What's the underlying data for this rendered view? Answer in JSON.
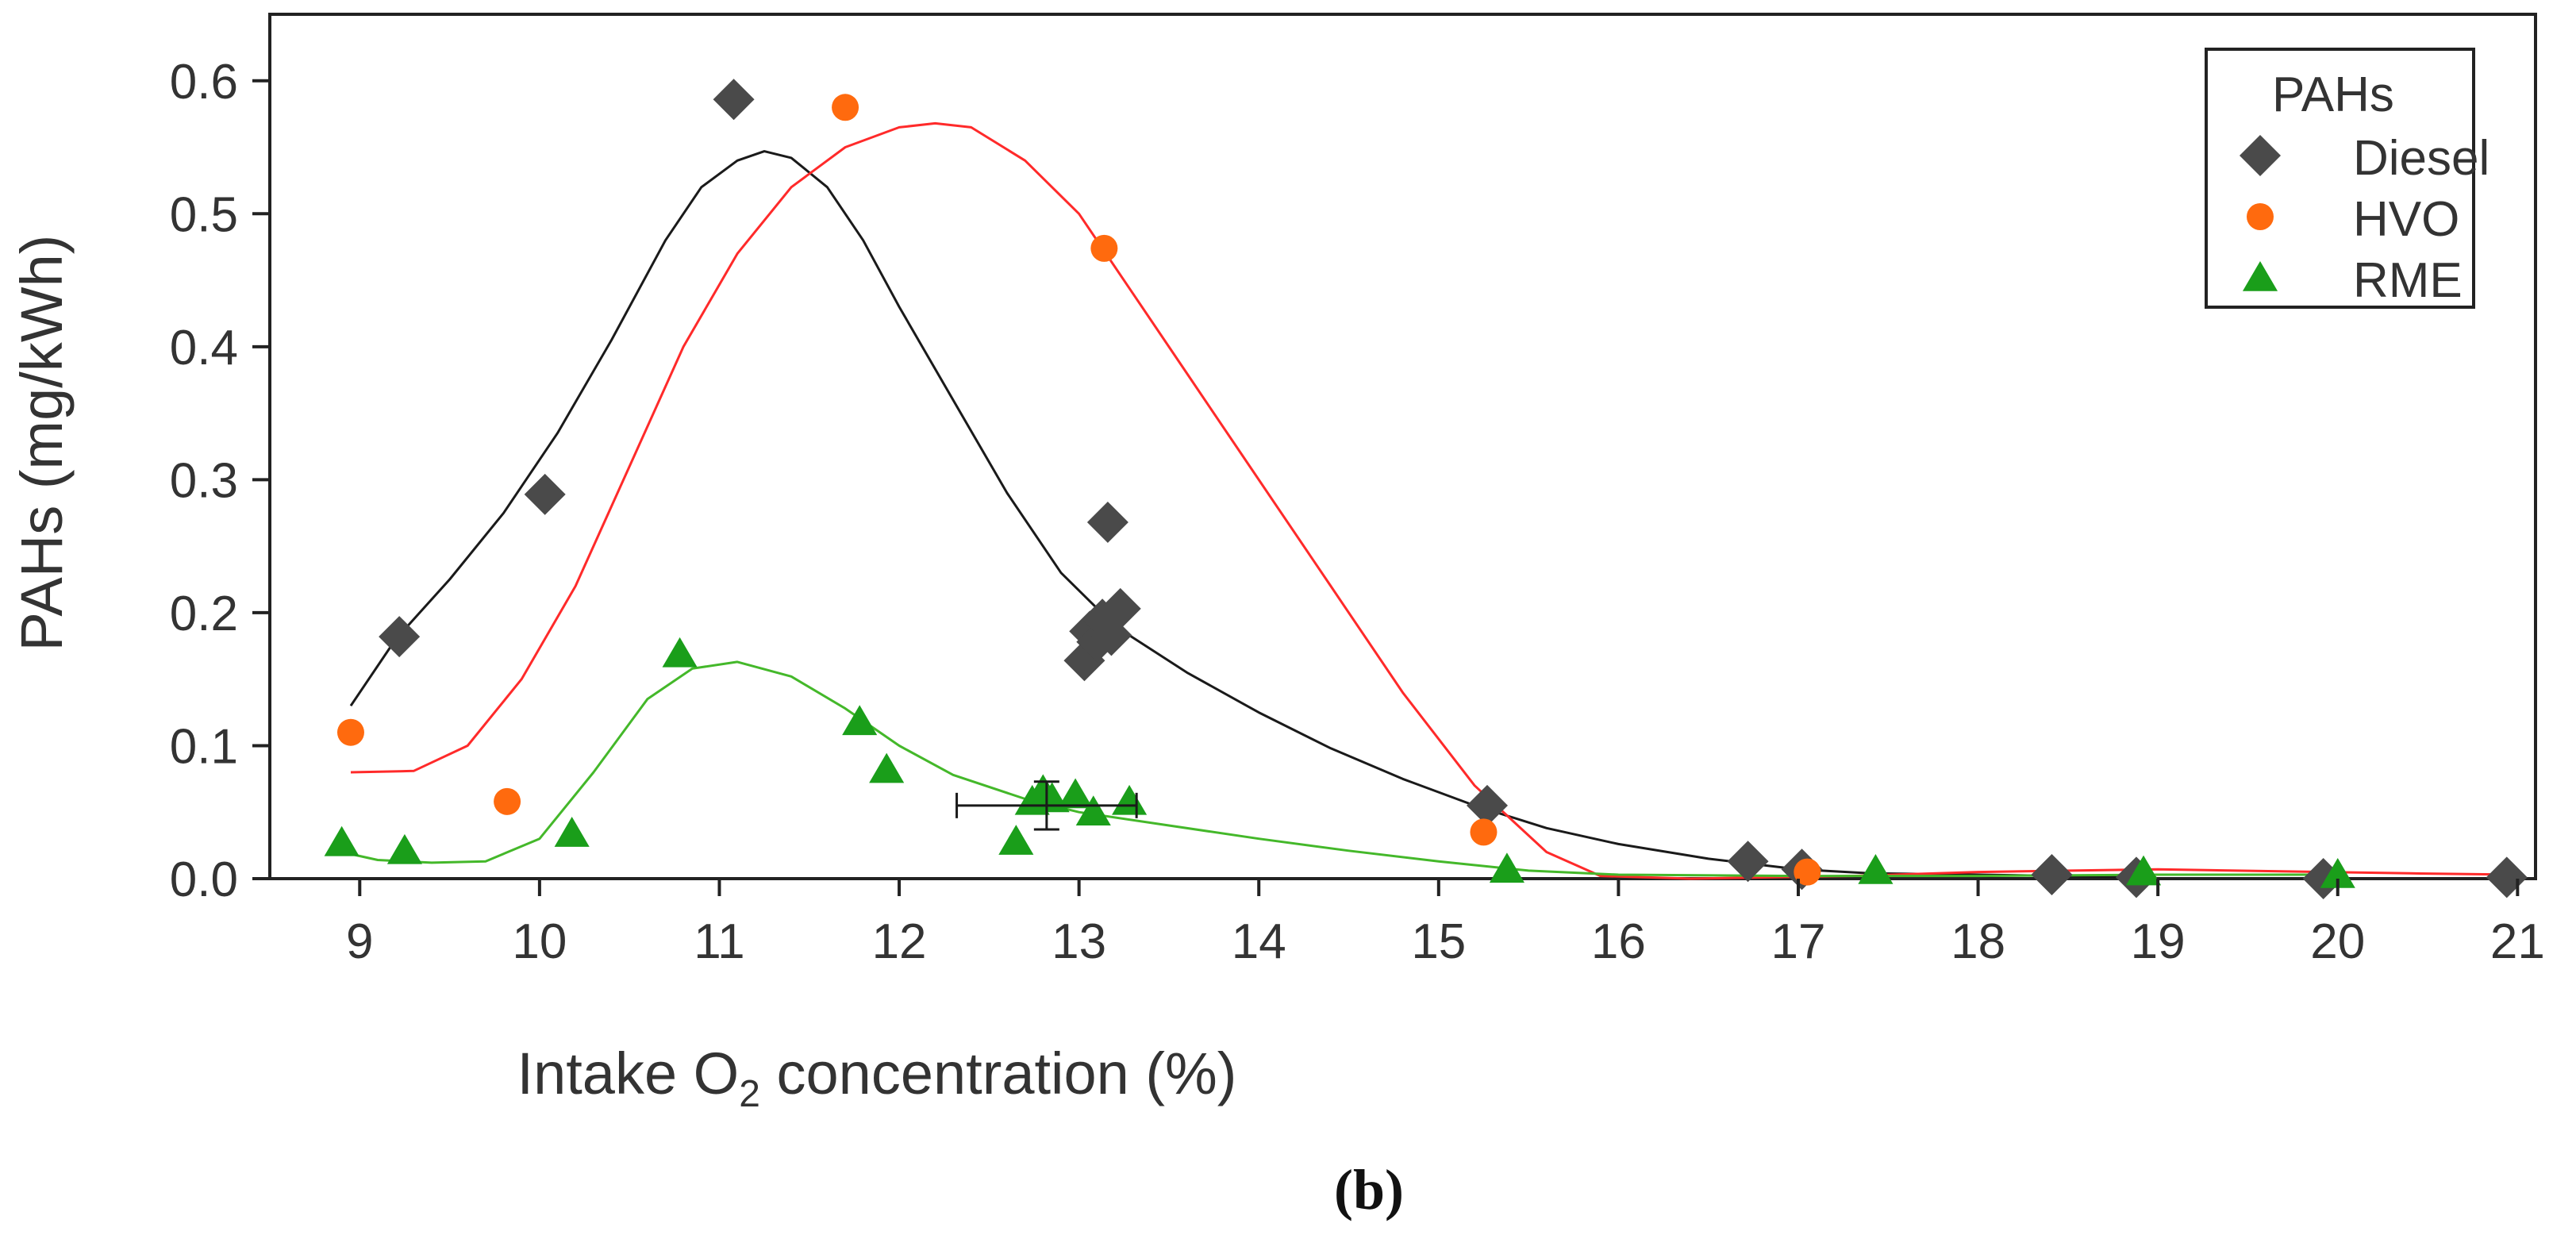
{
  "chart_data": {
    "type": "scatter",
    "xlabel_prefix": "Intake O",
    "xlabel_subscript": "2",
    "xlabel_suffix": " concentration (%)",
    "ylabel": "PAHs (mg/kWh)",
    "xlim": [
      8.5,
      21.1
    ],
    "ylim": [
      0,
      0.65
    ],
    "x_ticks": [
      9,
      10,
      11,
      12,
      13,
      14,
      15,
      16,
      17,
      18,
      19,
      20,
      21
    ],
    "y_ticks": [
      0.0,
      0.1,
      0.2,
      0.3,
      0.4,
      0.5,
      0.6
    ],
    "y_tick_labels": [
      "0.0",
      "0.1",
      "0.2",
      "0.3",
      "0.4",
      "0.5",
      "0.6"
    ],
    "legend": {
      "title": "PAHs",
      "position": "top-right"
    },
    "caption": "(b)",
    "series": [
      {
        "name": "Diesel",
        "marker": "diamond",
        "color": "#4a4a4a",
        "line_color": "#1a1a1a",
        "points": [
          [
            9.22,
            0.182
          ],
          [
            10.03,
            0.289
          ],
          [
            11.08,
            0.586
          ],
          [
            13.03,
            0.164
          ],
          [
            13.06,
            0.186
          ],
          [
            13.1,
            0.178
          ],
          [
            13.13,
            0.195
          ],
          [
            13.16,
            0.268
          ],
          [
            13.18,
            0.183
          ],
          [
            13.23,
            0.203
          ],
          [
            15.27,
            0.055
          ],
          [
            16.72,
            0.013
          ],
          [
            17.02,
            0.007
          ],
          [
            18.41,
            0.003
          ],
          [
            18.88,
            0.001
          ],
          [
            19.92,
            0.0
          ],
          [
            20.94,
            0.001
          ]
        ],
        "fit": [
          [
            8.95,
            0.13
          ],
          [
            9.2,
            0.18
          ],
          [
            9.5,
            0.225
          ],
          [
            9.8,
            0.275
          ],
          [
            10.1,
            0.335
          ],
          [
            10.4,
            0.405
          ],
          [
            10.7,
            0.48
          ],
          [
            10.9,
            0.52
          ],
          [
            11.1,
            0.54
          ],
          [
            11.25,
            0.547
          ],
          [
            11.4,
            0.542
          ],
          [
            11.6,
            0.52
          ],
          [
            11.8,
            0.48
          ],
          [
            12.0,
            0.43
          ],
          [
            12.3,
            0.36
          ],
          [
            12.6,
            0.29
          ],
          [
            12.9,
            0.23
          ],
          [
            13.2,
            0.19
          ],
          [
            13.6,
            0.155
          ],
          [
            14.0,
            0.125
          ],
          [
            14.4,
            0.098
          ],
          [
            14.8,
            0.075
          ],
          [
            15.2,
            0.055
          ],
          [
            15.6,
            0.038
          ],
          [
            16.0,
            0.026
          ],
          [
            16.5,
            0.015
          ],
          [
            17.0,
            0.007
          ],
          [
            17.4,
            0.004
          ],
          [
            18.0,
            0.003
          ],
          [
            18.9,
            0.001
          ]
        ]
      },
      {
        "name": "HVO",
        "marker": "circle",
        "color": "#ff6a0e",
        "line_color": "#ff2a2a",
        "points": [
          [
            8.95,
            0.11
          ],
          [
            9.82,
            0.058
          ],
          [
            11.7,
            0.58
          ],
          [
            13.14,
            0.474
          ],
          [
            15.25,
            0.035
          ],
          [
            17.05,
            0.005
          ]
        ],
        "fit": [
          [
            8.95,
            0.08
          ],
          [
            9.3,
            0.081
          ],
          [
            9.6,
            0.1
          ],
          [
            9.9,
            0.15
          ],
          [
            10.2,
            0.22
          ],
          [
            10.5,
            0.31
          ],
          [
            10.8,
            0.4
          ],
          [
            11.1,
            0.47
          ],
          [
            11.4,
            0.52
          ],
          [
            11.7,
            0.55
          ],
          [
            12.0,
            0.565
          ],
          [
            12.2,
            0.568
          ],
          [
            12.4,
            0.565
          ],
          [
            12.7,
            0.54
          ],
          [
            13.0,
            0.5
          ],
          [
            13.3,
            0.44
          ],
          [
            13.6,
            0.38
          ],
          [
            14.0,
            0.3
          ],
          [
            14.4,
            0.22
          ],
          [
            14.8,
            0.14
          ],
          [
            15.2,
            0.07
          ],
          [
            15.6,
            0.02
          ],
          [
            15.9,
            0.002
          ],
          [
            16.4,
            0.0
          ],
          [
            17.3,
            0.002
          ],
          [
            18.0,
            0.005
          ],
          [
            19.0,
            0.007
          ],
          [
            20.4,
            0.004
          ],
          [
            21.0,
            0.003
          ]
        ]
      },
      {
        "name": "RME",
        "marker": "triangle",
        "color": "#1a9e1a",
        "line_color": "#44b82a",
        "points": [
          [
            8.9,
            0.027
          ],
          [
            9.25,
            0.021
          ],
          [
            10.18,
            0.034
          ],
          [
            10.78,
            0.169
          ],
          [
            11.78,
            0.118
          ],
          [
            11.93,
            0.082
          ],
          [
            12.65,
            0.028
          ],
          [
            12.74,
            0.058
          ],
          [
            12.8,
            0.066
          ],
          [
            12.85,
            0.06
          ],
          [
            12.98,
            0.063
          ],
          [
            13.08,
            0.05
          ],
          [
            13.28,
            0.058
          ],
          [
            15.38,
            0.007
          ],
          [
            17.43,
            0.006
          ],
          [
            18.92,
            0.005
          ],
          [
            20.0,
            0.003
          ]
        ],
        "fit": [
          [
            8.9,
            0.02
          ],
          [
            9.1,
            0.014
          ],
          [
            9.4,
            0.012
          ],
          [
            9.7,
            0.013
          ],
          [
            10.0,
            0.03
          ],
          [
            10.3,
            0.08
          ],
          [
            10.6,
            0.135
          ],
          [
            10.85,
            0.158
          ],
          [
            11.1,
            0.163
          ],
          [
            11.4,
            0.152
          ],
          [
            11.7,
            0.128
          ],
          [
            12.0,
            0.1
          ],
          [
            12.3,
            0.078
          ],
          [
            12.7,
            0.06
          ],
          [
            13.0,
            0.05
          ],
          [
            13.5,
            0.04
          ],
          [
            14.0,
            0.03
          ],
          [
            14.5,
            0.021
          ],
          [
            15.0,
            0.013
          ],
          [
            15.5,
            0.006
          ],
          [
            16.0,
            0.003
          ],
          [
            17.0,
            0.002
          ],
          [
            18.0,
            0.002
          ],
          [
            19.0,
            0.003
          ],
          [
            20.0,
            0.003
          ]
        ]
      }
    ],
    "error_bar": {
      "x": 12.82,
      "y": 0.055,
      "xerr": 0.5,
      "yerr": 0.018,
      "color": "#1a1a1a"
    }
  }
}
